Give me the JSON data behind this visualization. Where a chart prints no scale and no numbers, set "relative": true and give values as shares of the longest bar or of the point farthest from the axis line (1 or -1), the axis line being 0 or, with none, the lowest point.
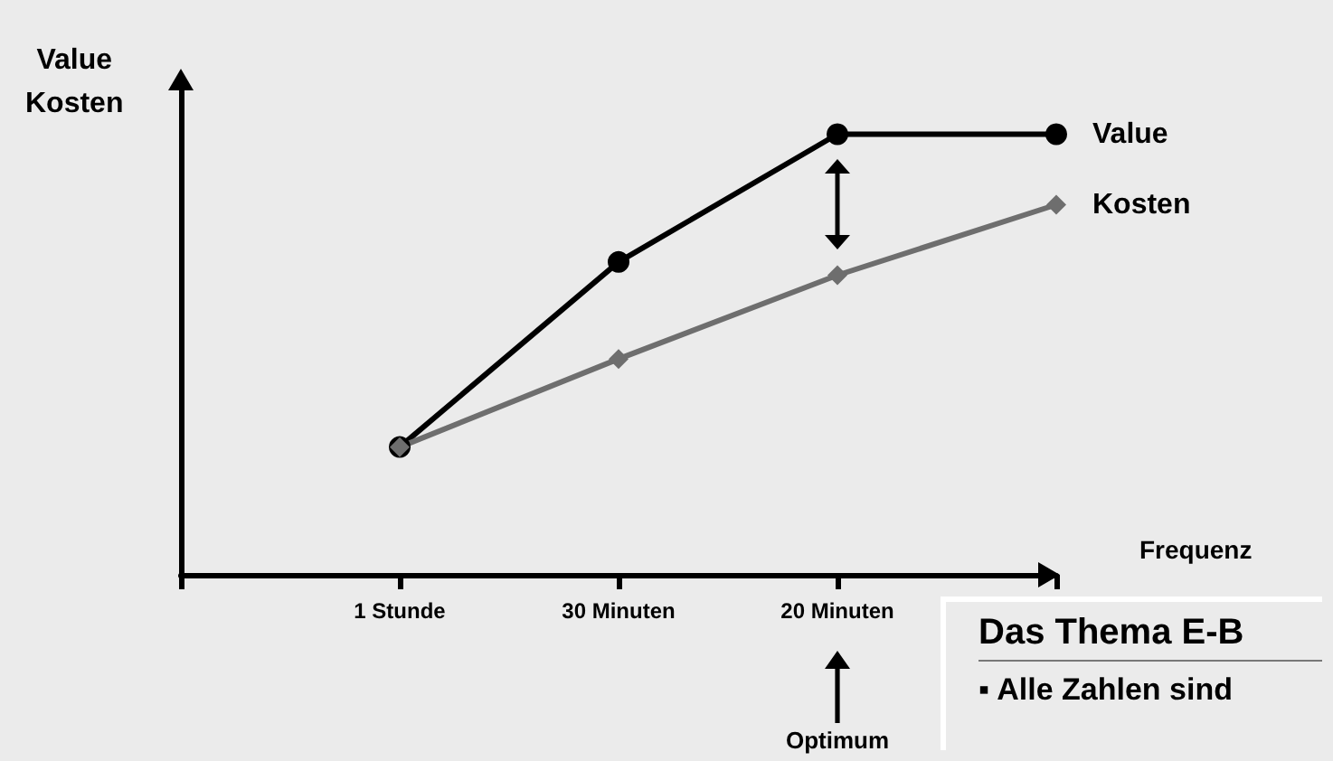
{
  "chart_data": {
    "type": "line",
    "relative": true,
    "ylabel": "Value\nKosten",
    "xlabel": "Frequenz",
    "categories": [
      "1 Stunde",
      "30 Minuten",
      "20 Minuten",
      null
    ],
    "series": [
      {
        "name": "Value",
        "color": "#000000",
        "marker": "circle",
        "values": [
          0.29,
          0.71,
          1.0,
          1.0
        ]
      },
      {
        "name": "Kosten",
        "color": "#6e6e6e",
        "marker": "diamond",
        "values": [
          0.29,
          0.49,
          0.68,
          0.84
        ]
      }
    ],
    "annotations": [
      "Optimum",
      "Das Thema E-B",
      "▪ Alle Zahlen sind"
    ],
    "grid": false,
    "legend": false
  }
}
